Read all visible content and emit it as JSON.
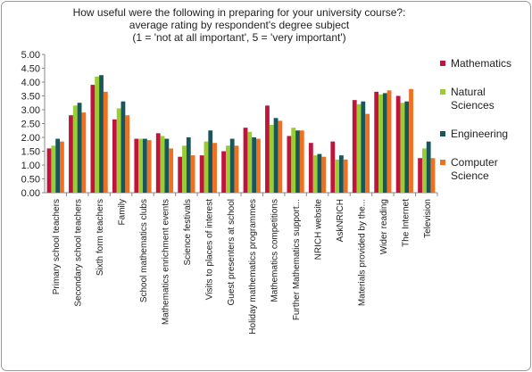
{
  "chart_data": {
    "type": "bar",
    "title": [
      "How useful were the following in preparing for your university course?:",
      "average rating by respondent's degree subject",
      "(1 = 'not at all important', 5 = 'very important')"
    ],
    "categories": [
      "Primary school teachers",
      "Secondary school teachers",
      "Sixth form teachers",
      "Family",
      "School mathematics clubs",
      "Mathematics enrichment events",
      "Science festivals",
      "Visits to places of interest",
      "Guest presenters at school",
      "Holiday mathematics programmes",
      "Mathematics competitions",
      "Further Mathematics support...",
      "NRICH website",
      "AskNRICH",
      "Materials provided by the...",
      "Wider reading",
      "The Internet",
      "Television"
    ],
    "series": [
      {
        "name": "Mathematics",
        "color": "#c0143c",
        "values": [
          1.6,
          2.8,
          3.9,
          2.65,
          1.95,
          2.15,
          1.3,
          1.35,
          1.5,
          2.35,
          3.15,
          2.05,
          1.8,
          1.85,
          3.35,
          3.65,
          3.5,
          1.25
        ]
      },
      {
        "name": "Natural Sciences",
        "color": "#9acd32",
        "values": [
          1.7,
          3.15,
          4.2,
          3.05,
          1.95,
          2.05,
          1.7,
          1.85,
          1.7,
          2.2,
          2.45,
          2.35,
          1.35,
          1.2,
          3.2,
          3.55,
          3.25,
          1.6
        ]
      },
      {
        "name": "Engineering",
        "color": "#17575b",
        "values": [
          1.95,
          3.25,
          4.25,
          3.3,
          1.95,
          1.95,
          2.0,
          2.25,
          1.95,
          2.0,
          2.7,
          2.25,
          1.4,
          1.35,
          3.3,
          3.6,
          3.3,
          1.85
        ]
      },
      {
        "name": "Computer Science",
        "color": "#f07020",
        "values": [
          1.85,
          2.9,
          3.65,
          2.8,
          1.9,
          1.6,
          1.35,
          1.8,
          1.7,
          1.95,
          2.6,
          2.25,
          1.3,
          1.2,
          2.85,
          3.7,
          3.75,
          1.25
        ]
      }
    ],
    "ylim": [
      0,
      5
    ],
    "yticks": [
      {
        "value": 0,
        "label": "0.00"
      },
      {
        "value": 0.5,
        "label": "0.50"
      },
      {
        "value": 1,
        "label": "1.00"
      },
      {
        "value": 1.5,
        "label": "1.50"
      },
      {
        "value": 2,
        "label": "2.00"
      },
      {
        "value": 2.5,
        "label": "2.50"
      },
      {
        "value": 3,
        "label": "3.00"
      },
      {
        "value": 3.5,
        "label": "3.50"
      },
      {
        "value": 4,
        "label": "4.00"
      },
      {
        "value": 4.5,
        "label": "4.50"
      },
      {
        "value": 5,
        "label": "5.00"
      }
    ],
    "grid": false
  }
}
